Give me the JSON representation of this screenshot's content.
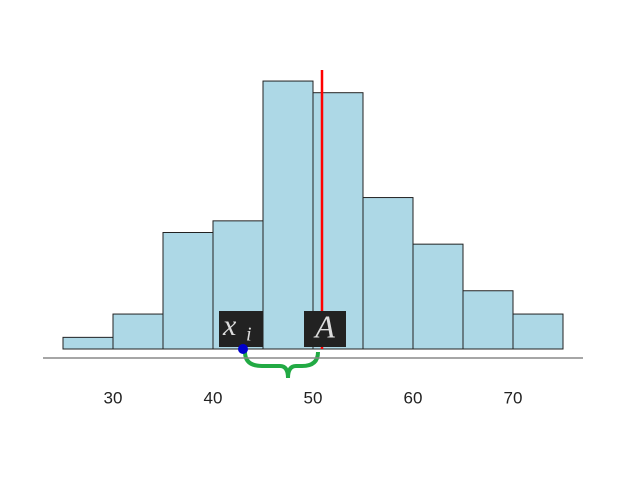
{
  "chart_data": {
    "type": "histogram",
    "bins": [
      25,
      30,
      35,
      40,
      45,
      50,
      55,
      60,
      65,
      70,
      75
    ],
    "counts": [
      1,
      3,
      10,
      11,
      23,
      22,
      13,
      9,
      5,
      3
    ],
    "color": "#add8e6",
    "xlim": [
      23,
      77
    ],
    "xticks": [
      30,
      40,
      50,
      60,
      70
    ],
    "reference_line": {
      "value": 50.9,
      "color": "#ff0000"
    },
    "point": {
      "value": 43,
      "color": "#0000cc"
    },
    "annotations": {
      "point_label": "x",
      "point_label_subscript": "i",
      "line_label": "A"
    }
  }
}
